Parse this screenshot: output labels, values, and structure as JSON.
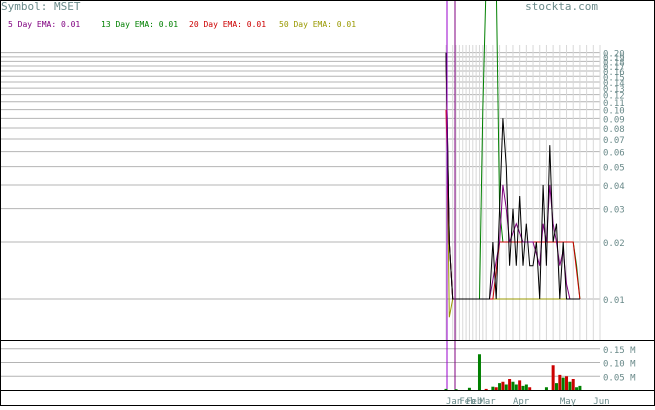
{
  "header": {
    "symbol_label": "Symbol: MSET",
    "brand": "stockta.com",
    "ema_legend": [
      {
        "label": "5 Day EMA: 0.01",
        "color": "#800080"
      },
      {
        "label": "13 Day EMA: 0.01",
        "color": "#008000"
      },
      {
        "label": "20 Day EMA: 0.01",
        "color": "#cc0000"
      },
      {
        "label": "50 Day EMA: 0.01",
        "color": "#999900"
      }
    ]
  },
  "colors": {
    "grid": "#b4b4b4",
    "frame": "#000000",
    "price": "#000000",
    "label": "#6a8a8a",
    "volume_up": "#008000",
    "volume_down": "#cc0000",
    "vertical_markers": [
      "#9900cc",
      "#800080"
    ]
  },
  "chart_data": [
    {
      "type": "line",
      "title": "",
      "y_scale": "log",
      "ylim": [
        0.0065,
        0.2
      ],
      "y_ticks": [
        0.01,
        0.02,
        0.03,
        0.04,
        0.05,
        0.06,
        0.07,
        0.08,
        0.09,
        0.1,
        0.11,
        0.12,
        0.13,
        0.14,
        0.15,
        0.16,
        0.17,
        0.18,
        0.19,
        0.2
      ],
      "y_tick_labels": [
        "0.01",
        "0.02",
        "0.03",
        "0.04",
        "0.05",
        "0.06",
        "0.07",
        "0.08",
        "0.09",
        "0.10",
        "0.11",
        "0.12",
        "0.13",
        "0.14",
        "0.15",
        "0.16",
        "0.17",
        "0.18",
        "0.19",
        "0.20"
      ],
      "x_labels": [
        {
          "label": "Jan",
          "x": 0
        },
        {
          "label": "Feb",
          "x": 4
        },
        {
          "label": "Feb",
          "x": 6
        },
        {
          "label": "Mar",
          "x": 10
        },
        {
          "label": "Apr",
          "x": 20
        },
        {
          "label": "May",
          "x": 34
        },
        {
          "label": "Jun",
          "x": 44
        }
      ],
      "x_range": [
        0,
        46
      ],
      "grid": true,
      "series": [
        {
          "key": "price",
          "values": [
            [
              0,
              0.2
            ],
            [
              1,
              0.02
            ],
            [
              2,
              0.01
            ],
            [
              10,
              0.01
            ],
            [
              13,
              0.01
            ],
            [
              14,
              0.02
            ],
            [
              15,
              0.01
            ],
            [
              16,
              0.03
            ],
            [
              17,
              0.09
            ],
            [
              18,
              0.05
            ],
            [
              19,
              0.015
            ],
            [
              20,
              0.03
            ],
            [
              21,
              0.015
            ],
            [
              22,
              0.035
            ],
            [
              23,
              0.015
            ],
            [
              24,
              0.025
            ],
            [
              25,
              0.015
            ],
            [
              26,
              0.015
            ],
            [
              27,
              0.02
            ],
            [
              28,
              0.01
            ],
            [
              29,
              0.04
            ],
            [
              30,
              0.015
            ],
            [
              31,
              0.065
            ],
            [
              32,
              0.02
            ],
            [
              33,
              0.025
            ],
            [
              34,
              0.01
            ],
            [
              35,
              0.02
            ],
            [
              36,
              0.01
            ],
            [
              37,
              0.01
            ],
            [
              38,
              0.01
            ],
            [
              39,
              0.01
            ],
            [
              40,
              0.01
            ]
          ]
        },
        {
          "key": "ema5",
          "values": [
            [
              0,
              0.2
            ],
            [
              1,
              0.02
            ],
            [
              2,
              0.01
            ],
            [
              13,
              0.01
            ],
            [
              16,
              0.02
            ],
            [
              17,
              0.04
            ],
            [
              18,
              0.03
            ],
            [
              19,
              0.02
            ],
            [
              21,
              0.025
            ],
            [
              23,
              0.02
            ],
            [
              26,
              0.02
            ],
            [
              28,
              0.015
            ],
            [
              29,
              0.025
            ],
            [
              30,
              0.02
            ],
            [
              31,
              0.04
            ],
            [
              32,
              0.025
            ],
            [
              33,
              0.02
            ],
            [
              34,
              0.015
            ],
            [
              35,
              0.018
            ],
            [
              36,
              0.012
            ],
            [
              37,
              0.01
            ],
            [
              40,
              0.01
            ]
          ]
        },
        {
          "key": "ema13",
          "values": [
            [
              0,
              0.2
            ],
            [
              1,
              0.02
            ],
            [
              2,
              0.01
            ],
            [
              10,
              0.01
            ],
            [
              11,
              0.1
            ],
            [
              12,
              0.5
            ],
            [
              15,
              0.5
            ],
            [
              16,
              0.03
            ],
            [
              17,
              0.02
            ],
            [
              20,
              0.02
            ],
            [
              38,
              0.02
            ],
            [
              39,
              0.015
            ],
            [
              40,
              0.01
            ]
          ]
        },
        {
          "key": "ema20",
          "values": [
            [
              0,
              0.1
            ],
            [
              1,
              0.02
            ],
            [
              2,
              0.01
            ],
            [
              14,
              0.01
            ],
            [
              16,
              0.02
            ],
            [
              38,
              0.02
            ],
            [
              40,
              0.01
            ]
          ]
        },
        {
          "key": "ema50",
          "values": [
            [
              0,
              0.2
            ],
            [
              1,
              0.008
            ],
            [
              2,
              0.01
            ],
            [
              40,
              0.01
            ]
          ]
        }
      ]
    },
    {
      "type": "bar",
      "title": "",
      "ylim": [
        0,
        0.19
      ],
      "y_ticks": [
        0.05,
        0.1,
        0.15
      ],
      "y_tick_labels": [
        "0.05 M",
        "0.10 M",
        "0.15 M"
      ],
      "x_range": [
        0,
        46
      ],
      "values": [
        [
          0,
          0.004,
          "up"
        ],
        [
          3,
          0.003,
          "up"
        ],
        [
          7,
          0.008,
          "up"
        ],
        [
          10,
          0.13,
          "up"
        ],
        [
          12,
          0.004,
          "down"
        ],
        [
          14,
          0.012,
          "up"
        ],
        [
          15,
          0.01,
          "down"
        ],
        [
          16,
          0.025,
          "up"
        ],
        [
          17,
          0.03,
          "down"
        ],
        [
          18,
          0.02,
          "up"
        ],
        [
          19,
          0.04,
          "down"
        ],
        [
          20,
          0.03,
          "up"
        ],
        [
          21,
          0.02,
          "up"
        ],
        [
          22,
          0.035,
          "down"
        ],
        [
          23,
          0.015,
          "up"
        ],
        [
          24,
          0.02,
          "up"
        ],
        [
          25,
          0.01,
          "down"
        ],
        [
          30,
          0.01,
          "up"
        ],
        [
          32,
          0.09,
          "down"
        ],
        [
          33,
          0.025,
          "up"
        ],
        [
          34,
          0.055,
          "down"
        ],
        [
          35,
          0.045,
          "up"
        ],
        [
          36,
          0.05,
          "down"
        ],
        [
          37,
          0.03,
          "up"
        ],
        [
          38,
          0.04,
          "down"
        ],
        [
          39,
          0.01,
          "up"
        ],
        [
          40,
          0.015,
          "up"
        ]
      ]
    }
  ]
}
